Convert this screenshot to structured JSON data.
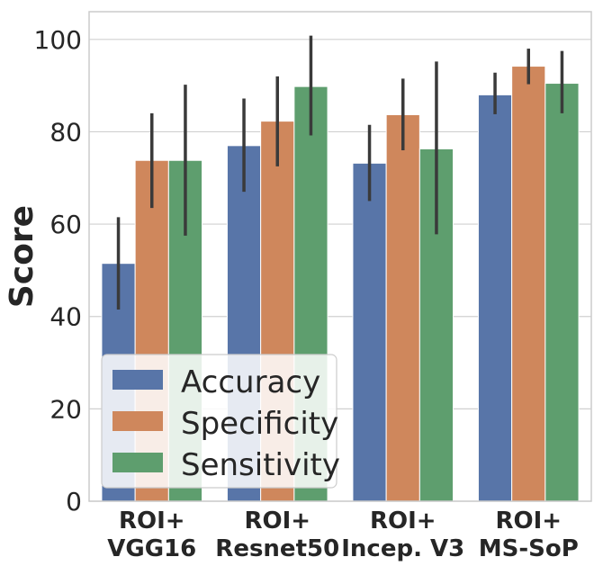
{
  "chart_data": {
    "type": "bar",
    "title": "",
    "xlabel": "",
    "ylabel": "Score",
    "ylim": [
      0,
      106
    ],
    "yticks": [
      0,
      20,
      40,
      60,
      80,
      100
    ],
    "grid": true,
    "legend_position": "bottom-left",
    "categories": [
      [
        "ROI+",
        "VGG16"
      ],
      [
        "ROI+",
        "Resnet50"
      ],
      [
        "ROI+",
        "Incep. V3"
      ],
      [
        "ROI+",
        "MS-SoP"
      ]
    ],
    "series": [
      {
        "name": "Accuracy",
        "color": "#5875a8",
        "values": [
          51.5,
          77.0,
          73.2,
          88.0
        ],
        "err_low": [
          41.5,
          67.0,
          65.0,
          83.8
        ],
        "err_high": [
          61.5,
          87.2,
          81.5,
          92.8
        ]
      },
      {
        "name": "Specificity",
        "color": "#cf875c",
        "values": [
          73.8,
          82.3,
          83.7,
          94.2
        ],
        "err_low": [
          63.5,
          72.5,
          76.0,
          90.3
        ],
        "err_high": [
          84.0,
          92.0,
          91.5,
          98.0
        ]
      },
      {
        "name": "Sensitivity",
        "color": "#5e9e6e",
        "values": [
          73.8,
          89.8,
          76.3,
          90.5
        ],
        "err_low": [
          57.5,
          79.2,
          57.8,
          84.0
        ],
        "err_high": [
          90.2,
          100.8,
          95.2,
          97.5
        ]
      }
    ]
  }
}
